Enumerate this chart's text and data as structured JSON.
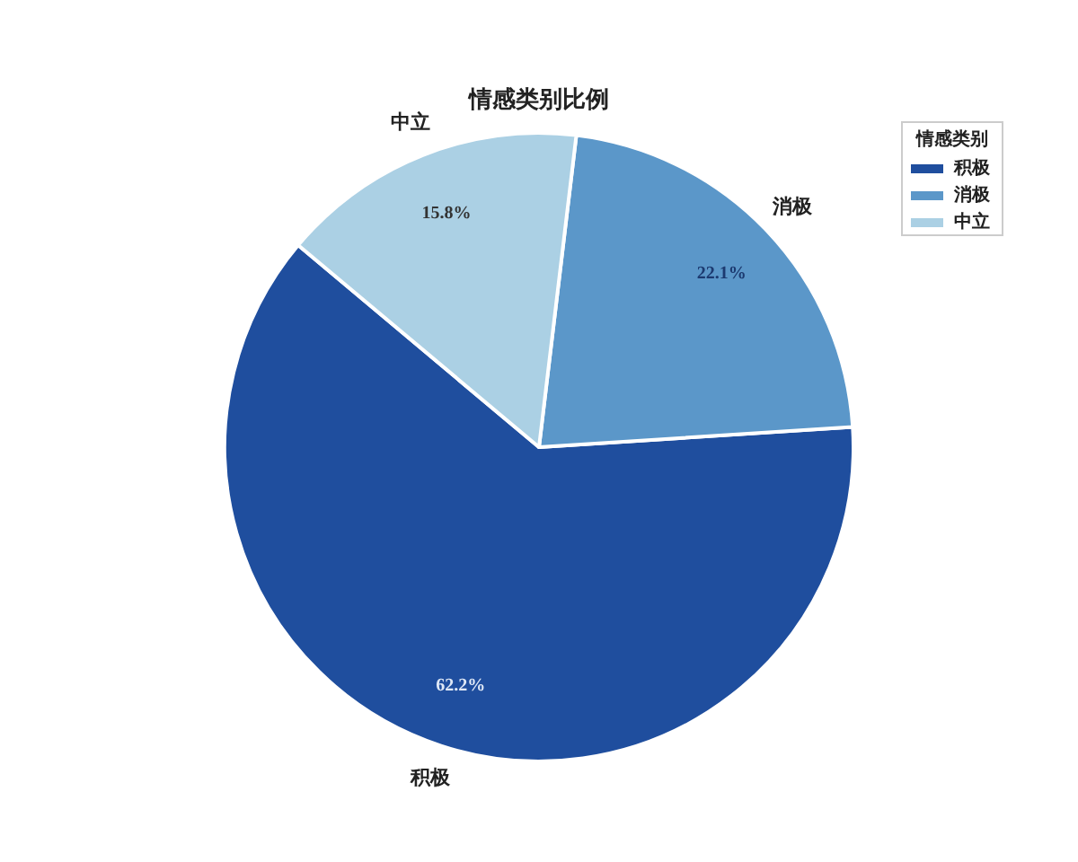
{
  "chart_data": {
    "type": "pie",
    "title": "情感类别比例",
    "categories": [
      "积极",
      "消极",
      "中立"
    ],
    "values": [
      62.2,
      22.1,
      15.8
    ],
    "value_labels": [
      "62.2%",
      "22.1%",
      "15.8%"
    ],
    "colors": [
      "#1f4e9e",
      "#5b97c9",
      "#abd0e4"
    ],
    "legend_title": "情感类别",
    "legend": "top right"
  }
}
